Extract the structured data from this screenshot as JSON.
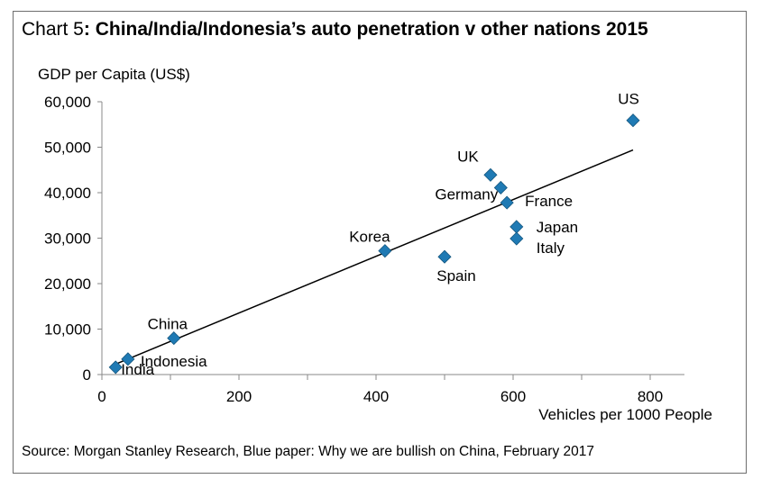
{
  "chart_data": {
    "type": "scatter",
    "title_lead": "Chart 5",
    "title_rest": ": China/India/Indonesia’s auto penetration v other nations 2015",
    "ylabel": "GDP per Capita (US$)",
    "xlabel": "Vehicles per 1000 People",
    "source": "Source: Morgan Stanley Research, Blue paper: Why we are bullish on China, February 2017",
    "xlim": [
      0,
      850
    ],
    "ylim": [
      0,
      60000
    ],
    "x_ticks": [
      0,
      200,
      400,
      600,
      800
    ],
    "x_tick_labels": [
      "0",
      "200",
      "400",
      "600",
      "800"
    ],
    "y_ticks": [
      0,
      10000,
      20000,
      30000,
      40000,
      50000,
      60000
    ],
    "y_tick_labels": [
      "0",
      "10,000",
      "20,000",
      "30,000",
      "40,000",
      "50,000",
      "60,000"
    ],
    "marker_color": "#1f7ab4",
    "points": [
      {
        "label": "India",
        "x": 20,
        "y": 1600
      },
      {
        "label": "Indonesia",
        "x": 38,
        "y": 3400
      },
      {
        "label": "China",
        "x": 105,
        "y": 8000
      },
      {
        "label": "Korea",
        "x": 413,
        "y": 27200
      },
      {
        "label": "Spain",
        "x": 500,
        "y": 25900
      },
      {
        "label": "UK",
        "x": 567,
        "y": 43900
      },
      {
        "label": "Germany",
        "x": 582,
        "y": 41100
      },
      {
        "label": "France",
        "x": 591,
        "y": 37800
      },
      {
        "label": "Japan",
        "x": 605,
        "y": 32500
      },
      {
        "label": "Italy",
        "x": 605,
        "y": 29900
      },
      {
        "label": "US",
        "x": 775,
        "y": 55900
      }
    ],
    "trendline": {
      "x": [
        20,
        775
      ],
      "y": [
        2300,
        49400
      ]
    }
  }
}
